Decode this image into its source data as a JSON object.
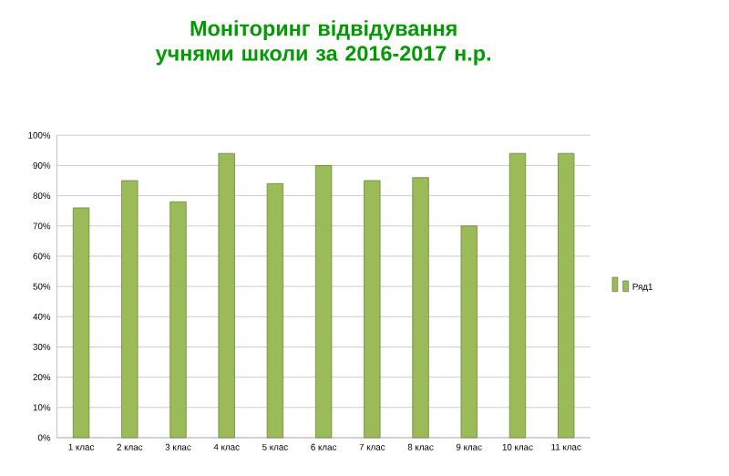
{
  "chart_data": {
    "type": "bar",
    "title": "Моніторинг відвідування учнями школи за 2016-2017 н.р.",
    "categories": [
      "1 клас",
      "2 клас",
      "3 клас",
      "4 клас",
      "5 клас",
      "6 клас",
      "7 клас",
      "8 клас",
      "9 клас",
      "10 клас",
      "11 клас"
    ],
    "series": [
      {
        "name": "Ряд1",
        "color": "#9bbb59",
        "values": [
          76,
          85,
          78,
          94,
          84,
          90,
          85,
          86,
          70,
          94,
          94
        ]
      }
    ],
    "ylim": [
      0,
      100
    ],
    "yticks": [
      {
        "value": 0,
        "label": "0%"
      },
      {
        "value": 10,
        "label": "10%"
      },
      {
        "value": 20,
        "label": "20%"
      },
      {
        "value": 30,
        "label": "30%"
      },
      {
        "value": 40,
        "label": "40%"
      },
      {
        "value": 50,
        "label": "50%"
      },
      {
        "value": 60,
        "label": "60%"
      },
      {
        "value": 70,
        "label": "70%"
      },
      {
        "value": 80,
        "label": "80%"
      },
      {
        "value": 90,
        "label": "90%"
      },
      {
        "value": 100,
        "label": "100%"
      }
    ],
    "grid": "y",
    "legend": "right"
  }
}
